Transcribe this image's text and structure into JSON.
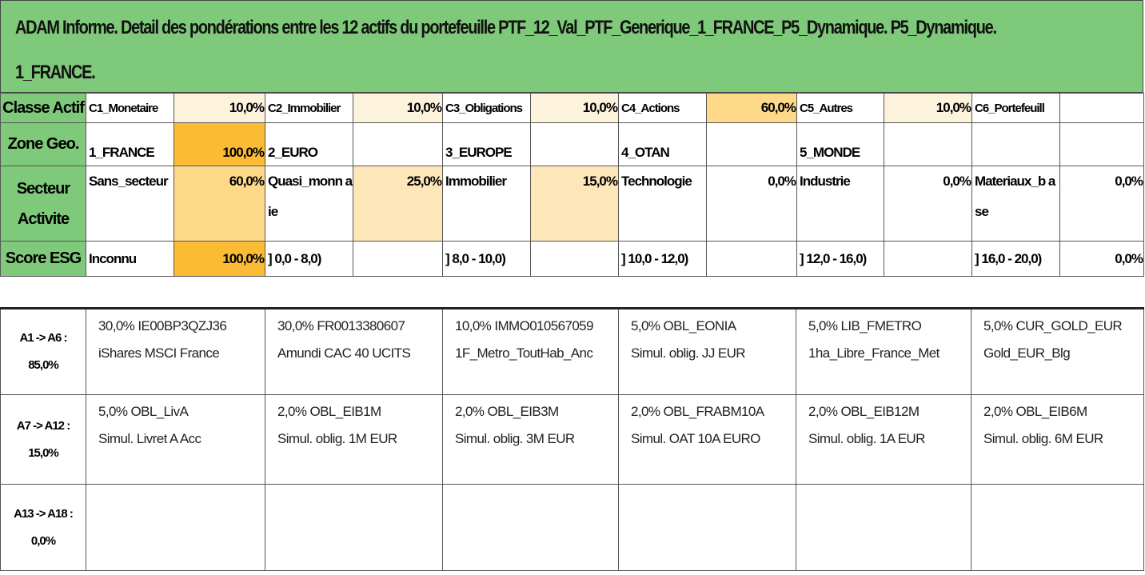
{
  "title": {
    "line1": "ADAM Informe. Detail des pondérations entre les 12 actifs du portefeuille PTF_12_Val_PTF_Generique_1_FRANCE_P5_Dynamique. P5_Dynamique.",
    "line2": "1_FRANCE."
  },
  "rows": {
    "classe": {
      "header": "Classe Actif",
      "items": [
        {
          "label": "C1_Monetaire",
          "pct": "10,0%"
        },
        {
          "label": "C2_Immobilier",
          "pct": "10,0%"
        },
        {
          "label": "C3_Obligations",
          "pct": "10,0%"
        },
        {
          "label": "C4_Actions",
          "pct": "60,0%"
        },
        {
          "label": "C5_Autres",
          "pct": "10,0%"
        },
        {
          "label": "C6_Portefeuill",
          "pct": ""
        }
      ]
    },
    "zone": {
      "header": "Zone Geo.",
      "items": [
        {
          "label": "1_FRANCE",
          "pct": "100,0%"
        },
        {
          "label": "2_EURO",
          "pct": ""
        },
        {
          "label": "3_EUROPE",
          "pct": ""
        },
        {
          "label": "4_OTAN",
          "pct": ""
        },
        {
          "label": "5_MONDE",
          "pct": ""
        },
        {
          "label": "",
          "pct": ""
        }
      ]
    },
    "secteur": {
      "header_line1": "Secteur",
      "header_line2": "Activite",
      "items": [
        {
          "label": "Sans_secteur",
          "pct": "60,0%"
        },
        {
          "label": "Quasi_monn aie",
          "pct": "25,0%"
        },
        {
          "label": "Immobilier",
          "pct": "15,0%"
        },
        {
          "label": "Technologie",
          "pct": "0,0%"
        },
        {
          "label": "Industrie",
          "pct": "0,0%"
        },
        {
          "label": "Materiaux_b ase",
          "pct": "0,0%"
        }
      ]
    },
    "esg": {
      "header": "Score ESG",
      "items": [
        {
          "label": "Inconnu",
          "pct": "100,0%"
        },
        {
          "label": "] 0,0 - 8,0)",
          "pct": ""
        },
        {
          "label": "] 8,0 - 10,0)",
          "pct": ""
        },
        {
          "label": "] 10,0 - 12,0)",
          "pct": ""
        },
        {
          "label": "] 12,0 - 16,0)",
          "pct": ""
        },
        {
          "label": "] 16,0 - 20,0)",
          "pct": "0,0%"
        }
      ]
    }
  },
  "asset_rows": [
    {
      "range": "A1 -> A6 :",
      "total": "85,0%",
      "assets": [
        {
          "line1": "30,0% IE00BP3QZJ36",
          "line2": "iShares MSCI France"
        },
        {
          "line1": "30,0% FR0013380607",
          "line2": "Amundi CAC 40 UCITS"
        },
        {
          "line1": "10,0% IMMO010567059",
          "line2": "1F_Metro_ToutHab_Anc"
        },
        {
          "line1": "5,0% OBL_EONIA",
          "line2": "Simul. oblig. JJ EUR"
        },
        {
          "line1": "5,0% LIB_FMETRO",
          "line2": "1ha_Libre_France_Met"
        },
        {
          "line1": "5,0% CUR_GOLD_EUR",
          "line2": "Gold_EUR_Blg"
        }
      ]
    },
    {
      "range": "A7 -> A12 :",
      "total": "15,0%",
      "assets": [
        {
          "line1": "5,0% OBL_LivA",
          "line2": "Simul. Livret A Acc"
        },
        {
          "line1": "2,0% OBL_EIB1M",
          "line2": "Simul. oblig. 1M EUR"
        },
        {
          "line1": "2,0% OBL_EIB3M",
          "line2": "Simul. oblig. 3M EUR"
        },
        {
          "line1": "2,0% OBL_FRABM10A",
          "line2": "Simul. OAT 10A EURO"
        },
        {
          "line1": "2,0% OBL_EIB12M",
          "line2": "Simul. oblig. 1A EUR"
        },
        {
          "line1": "2,0% OBL_EIB6M",
          "line2": "Simul. oblig. 6M EUR"
        }
      ]
    },
    {
      "range": "A13 -> A18 :",
      "total": "0,0%",
      "assets": [
        {
          "line1": "",
          "line2": ""
        },
        {
          "line1": "",
          "line2": ""
        },
        {
          "line1": "",
          "line2": ""
        },
        {
          "line1": "",
          "line2": ""
        },
        {
          "line1": "",
          "line2": ""
        },
        {
          "line1": "",
          "line2": ""
        }
      ]
    }
  ],
  "colors": {
    "header_green": "#7fc97a",
    "weight_very_low": "#fdf3dc",
    "weight_low": "#fde7b8",
    "weight_mid": "#fed98a",
    "weight_high": "#fcc248",
    "weight_full": "#fbbb34"
  }
}
